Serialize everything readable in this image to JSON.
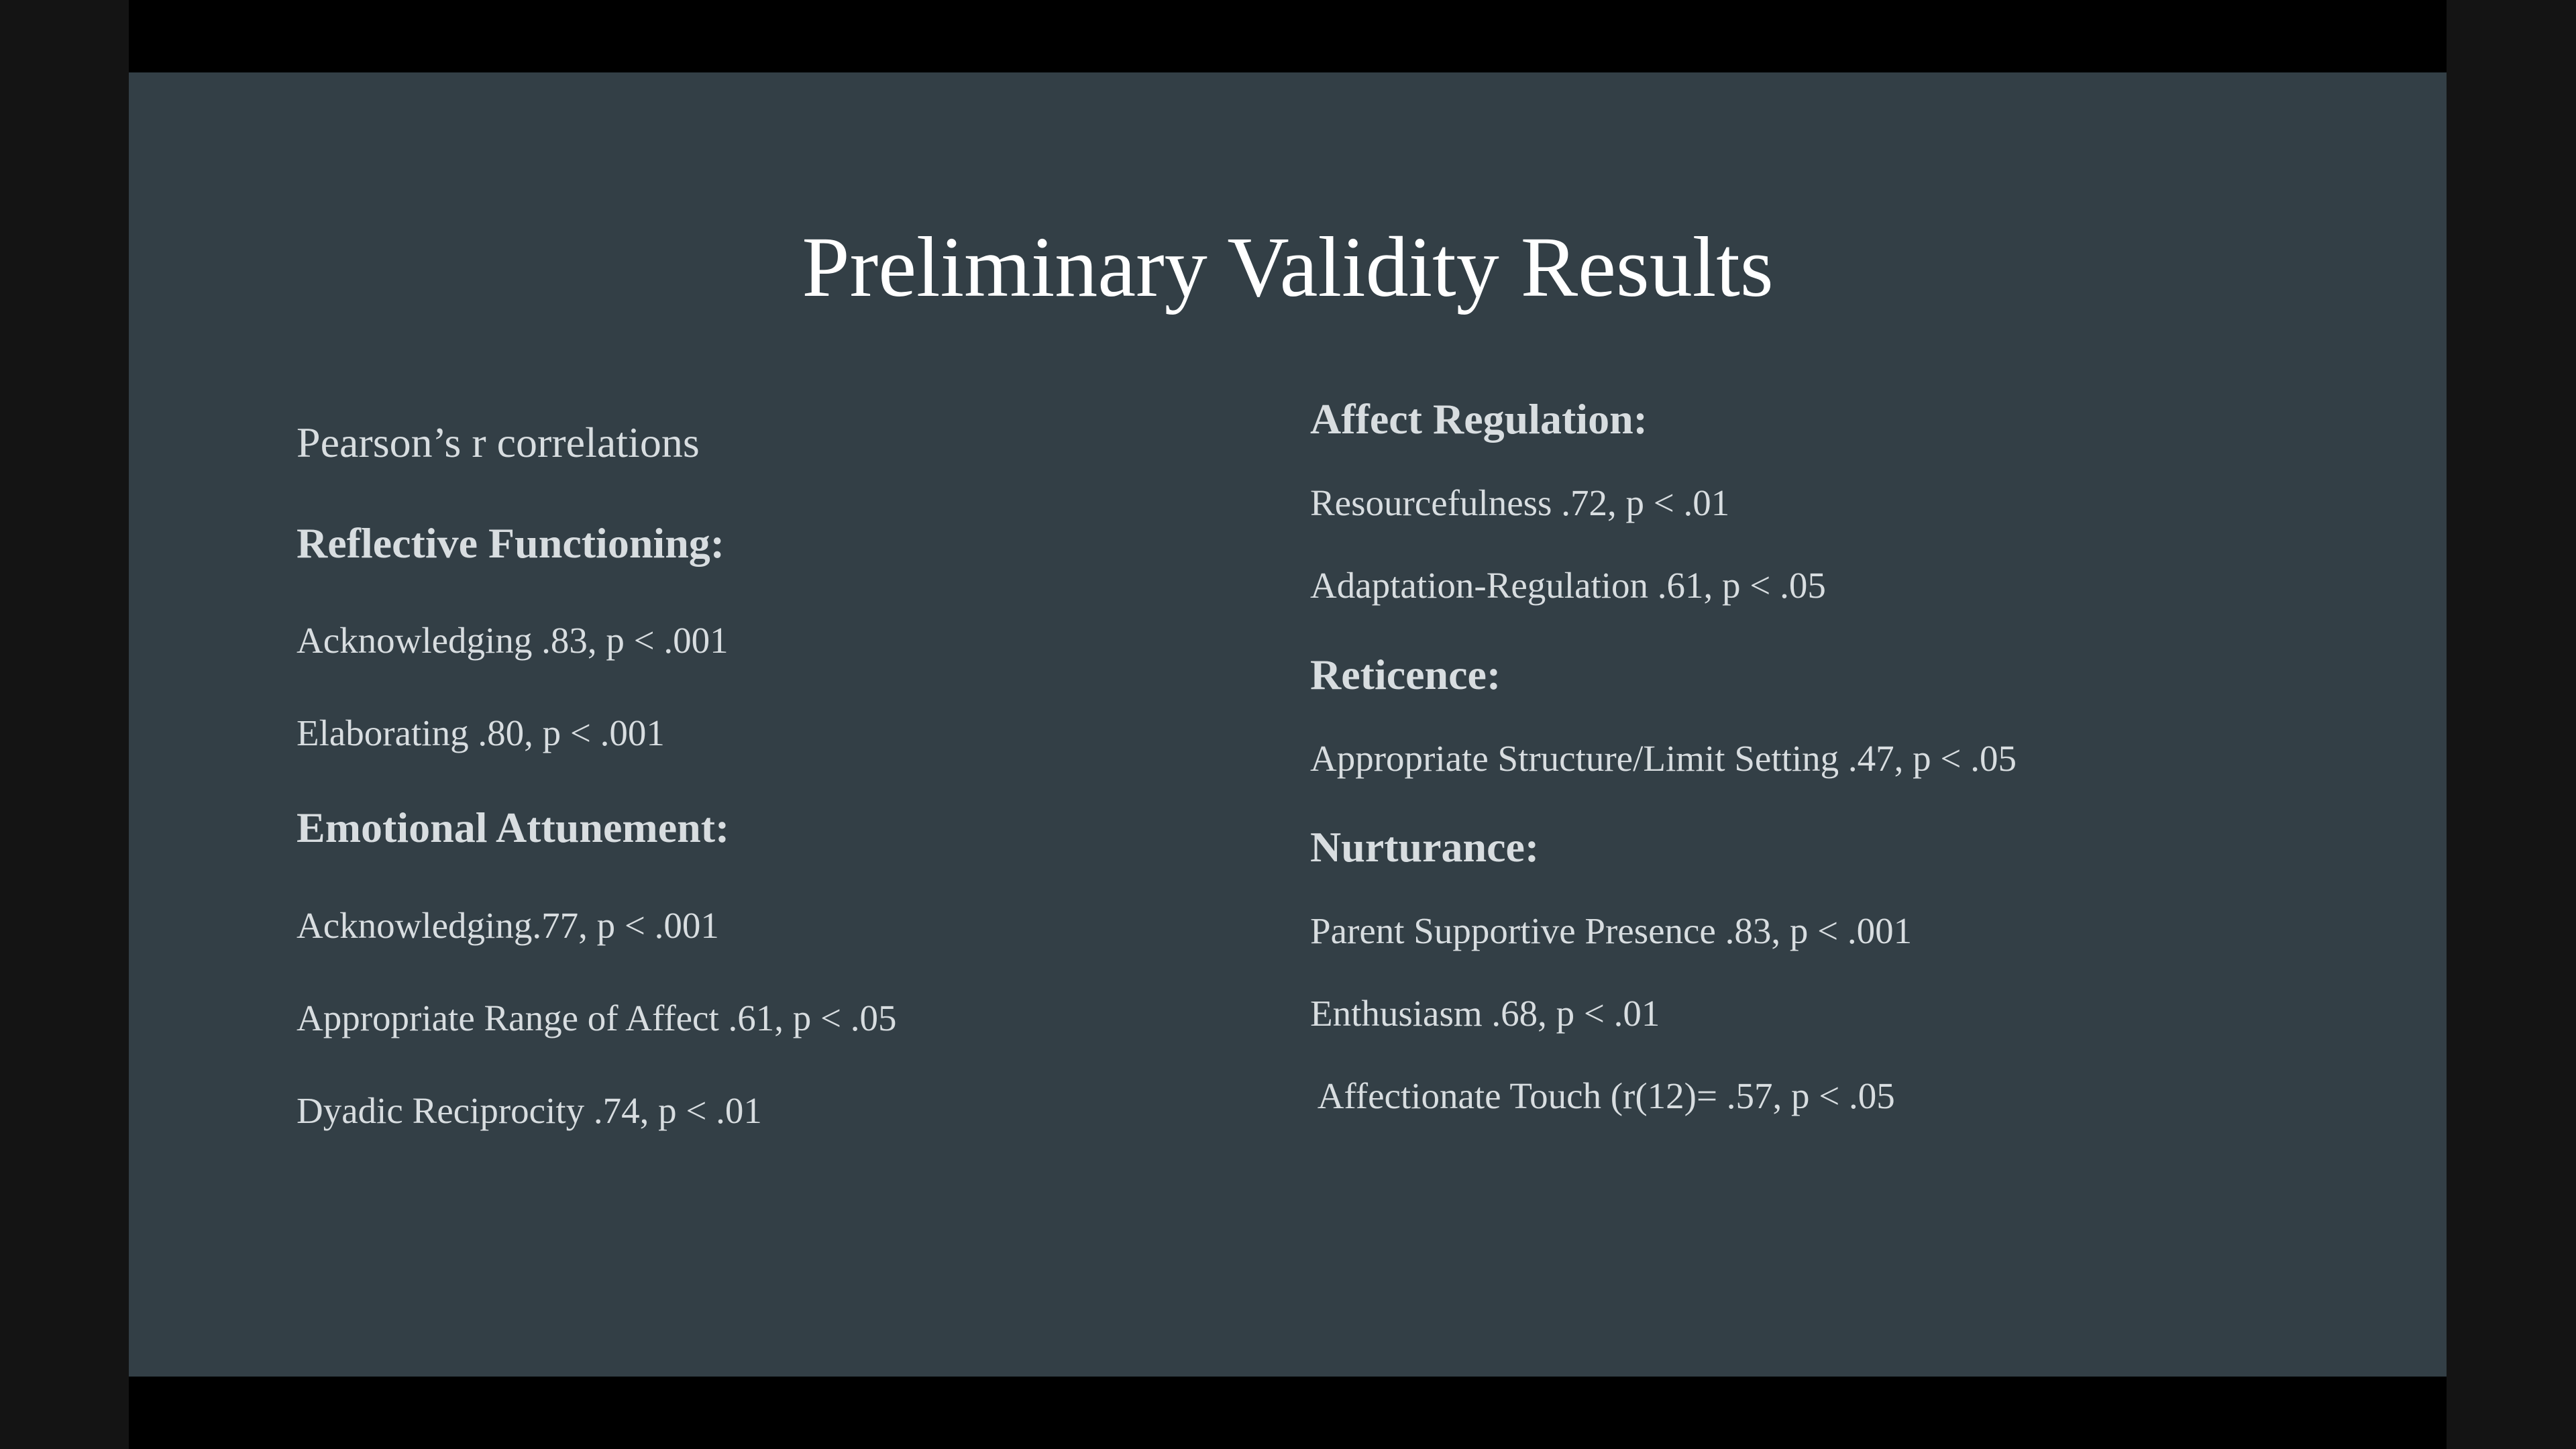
{
  "slide": {
    "title": "Preliminary Validity Results",
    "left_column": {
      "subtitle": "Pearson’s r correlations",
      "sections": [
        {
          "heading": "Reflective Functioning:",
          "items": [
            "Acknowledging .83, p < .001",
            "Elaborating .80, p < .001"
          ]
        },
        {
          "heading": "Emotional Attunement:",
          "items": [
            "Acknowledging.77, p < .001",
            "Appropriate Range of Affect .61, p < .05",
            "Dyadic Reciprocity .74, p < .01"
          ]
        }
      ]
    },
    "right_column": {
      "sections": [
        {
          "heading": "Affect Regulation:",
          "items": [
            "Resourcefulness .72, p < .01",
            "Adaptation-Regulation .61, p < .05"
          ]
        },
        {
          "heading": "Reticence:",
          "items": [
            "Appropriate Structure/Limit Setting .47, p < .05"
          ]
        },
        {
          "heading": "Nurturance:",
          "items": [
            "Parent Supportive Presence .83, p < .001",
            "Enthusiasm .68, p < .01",
            " Affectionate Touch (r(12)= .57, p < .05"
          ]
        }
      ]
    }
  }
}
